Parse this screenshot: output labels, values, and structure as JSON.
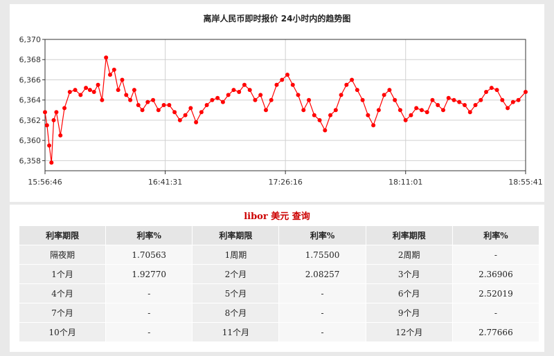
{
  "chart_data": {
    "type": "line",
    "title": "离岸人民币即时报价 24小时内的趋势图",
    "xlabel": "",
    "ylabel": "",
    "x_ticks": [
      "15:56:46",
      "16:41:31",
      "17:26:16",
      "18:11:01",
      "18:55:41"
    ],
    "y_ticks": [
      "6,358",
      "6,360",
      "6,362",
      "6,364",
      "6,366",
      "6,368",
      "6,370"
    ],
    "ylim": [
      6.357,
      6.37
    ],
    "grid": true,
    "marker": "circle",
    "color": "#ff0000",
    "series": [
      {
        "x": [
          "15:56:46",
          "15:57:30",
          "15:58:20",
          "15:59:10",
          "16:00:00",
          "16:01:00",
          "16:02:30",
          "16:04:00",
          "16:06:00",
          "16:08:00",
          "16:10:00",
          "16:12:00",
          "16:13:30",
          "16:15:00",
          "16:16:30",
          "16:18:00",
          "16:19:30",
          "16:21:00",
          "16:22:30",
          "16:24:00",
          "16:25:30",
          "16:27:00",
          "16:28:30",
          "16:30:00",
          "16:31:30",
          "16:33:00",
          "16:35:00",
          "16:37:00",
          "16:39:00",
          "16:41:00",
          "16:43:00",
          "16:45:00",
          "16:47:00",
          "16:49:00",
          "16:51:00",
          "16:53:00",
          "16:55:00",
          "16:57:00",
          "16:59:00",
          "17:01:00",
          "17:03:00",
          "17:05:00",
          "17:07:00",
          "17:09:00",
          "17:11:00",
          "17:13:00",
          "17:15:00",
          "17:17:00",
          "17:19:00",
          "17:21:00",
          "17:23:00",
          "17:25:00",
          "17:27:00",
          "17:29:00",
          "17:31:00",
          "17:33:00",
          "17:35:00",
          "17:37:00",
          "17:39:00",
          "17:41:00",
          "17:43:00",
          "17:45:00",
          "17:47:00",
          "17:49:00",
          "17:51:00",
          "17:53:00",
          "17:55:00",
          "17:57:00",
          "17:59:00",
          "18:01:00",
          "18:03:00",
          "18:05:00",
          "18:07:00",
          "18:09:00",
          "18:11:00",
          "18:13:00",
          "18:15:00",
          "18:17:00",
          "18:19:00",
          "18:21:00",
          "18:23:00",
          "18:25:00",
          "18:27:00",
          "18:29:00",
          "18:31:00",
          "18:33:00",
          "18:35:00",
          "18:37:00",
          "18:39:00",
          "18:41:00",
          "18:43:00",
          "18:45:00",
          "18:47:00",
          "18:49:00",
          "18:51:00",
          "18:53:00",
          "18:55:41"
        ],
        "values": [
          6.3628,
          6.3615,
          6.3595,
          6.3578,
          6.362,
          6.3628,
          6.3605,
          6.3632,
          6.3648,
          6.365,
          6.3645,
          6.3652,
          6.365,
          6.3648,
          6.3655,
          6.364,
          6.3682,
          6.3665,
          6.367,
          6.365,
          6.366,
          6.3645,
          6.364,
          6.365,
          6.3635,
          6.363,
          6.3638,
          6.364,
          6.363,
          6.3635,
          6.3635,
          6.3628,
          6.362,
          6.3625,
          6.3632,
          6.3618,
          6.3628,
          6.3635,
          6.364,
          6.3642,
          6.3638,
          6.3645,
          6.365,
          6.3648,
          6.3655,
          6.365,
          6.364,
          6.3645,
          6.363,
          6.364,
          6.3655,
          6.366,
          6.3665,
          6.3655,
          6.3645,
          6.363,
          6.364,
          6.3625,
          6.362,
          6.361,
          6.3625,
          6.363,
          6.3645,
          6.3655,
          6.366,
          6.365,
          6.364,
          6.3625,
          6.3615,
          6.363,
          6.3645,
          6.365,
          6.364,
          6.363,
          6.362,
          6.3625,
          6.3632,
          6.363,
          6.3628,
          6.364,
          6.3635,
          6.363,
          6.3642,
          6.364,
          6.3638,
          6.3635,
          6.3628,
          6.3635,
          6.364,
          6.3648,
          6.3652,
          6.365,
          6.364,
          6.3632,
          6.3638,
          6.364,
          6.3648
        ]
      }
    ]
  },
  "libor": {
    "title": "libor 美元 查询",
    "headers": [
      "利率期限",
      "利率%",
      "利率期限",
      "利率%",
      "利率期限",
      "利率%"
    ],
    "rows": [
      [
        {
          "term": "隔夜期",
          "rate": "1.70563"
        },
        {
          "term": "1周期",
          "rate": "1.75500"
        },
        {
          "term": "2周期",
          "rate": "-"
        }
      ],
      [
        {
          "term": "1个月",
          "rate": "1.92770"
        },
        {
          "term": "2个月",
          "rate": "2.08257"
        },
        {
          "term": "3个月",
          "rate": "2.36906"
        }
      ],
      [
        {
          "term": "4个月",
          "rate": "-"
        },
        {
          "term": "5个月",
          "rate": "-"
        },
        {
          "term": "6个月",
          "rate": "2.52019"
        }
      ],
      [
        {
          "term": "7个月",
          "rate": "-"
        },
        {
          "term": "8个月",
          "rate": "-"
        },
        {
          "term": "9个月",
          "rate": "-"
        }
      ],
      [
        {
          "term": "10个月",
          "rate": "-"
        },
        {
          "term": "11个月",
          "rate": "-"
        },
        {
          "term": "12个月",
          "rate": "2.77666"
        }
      ]
    ]
  }
}
